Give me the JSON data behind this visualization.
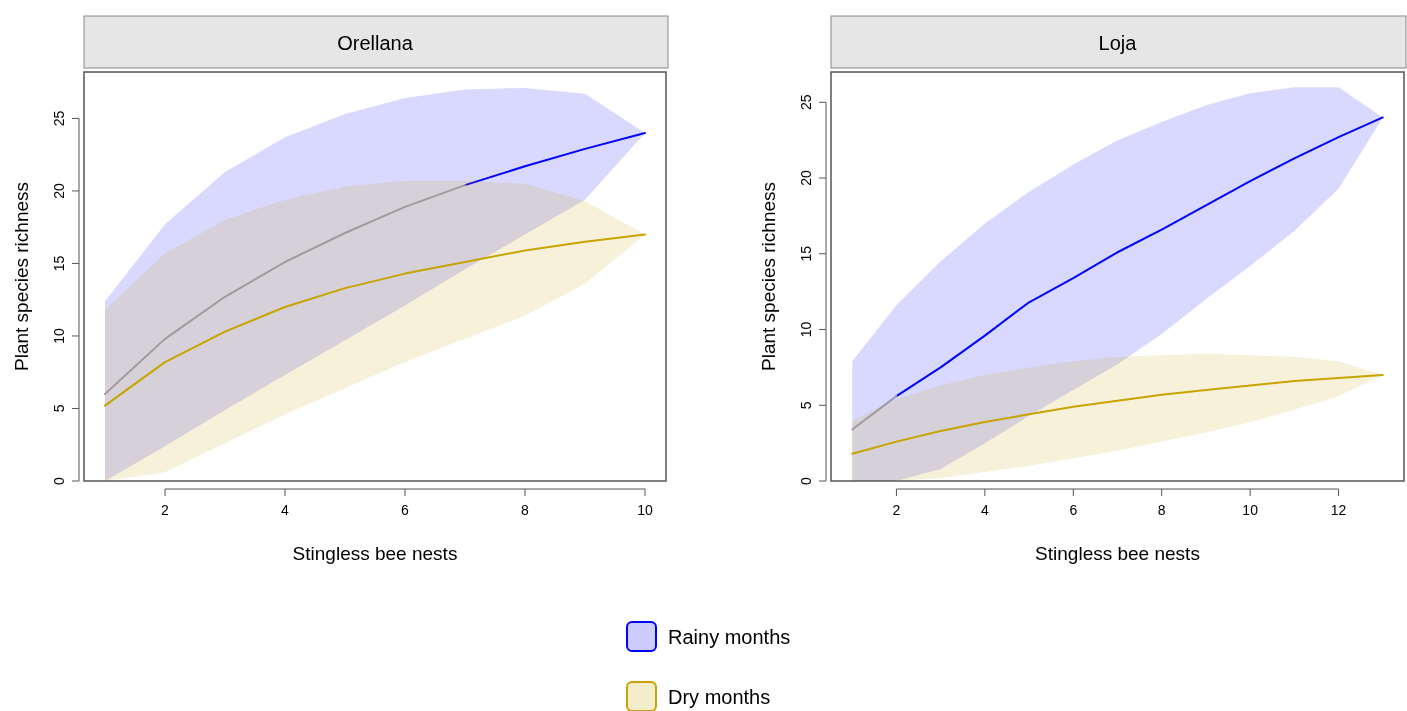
{
  "chart_data": [
    {
      "type": "line",
      "title": "Orellana",
      "xlabel": "Stingless bee nests",
      "ylabel": "Plant species richness",
      "x": [
        1,
        2,
        3,
        4,
        5,
        6,
        7,
        8,
        9,
        10
      ],
      "xlim": [
        0.65,
        10.35
      ],
      "xticks": [
        2,
        4,
        6,
        8,
        10
      ],
      "ylim": [
        0,
        28.2
      ],
      "yticks": [
        0,
        5,
        10,
        15,
        20,
        25
      ],
      "legend": "bottom",
      "series": [
        {
          "name": "Rainy months",
          "color": "#0000ff",
          "values": [
            null,
            null,
            null,
            null,
            null,
            null,
            20.4,
            21.7,
            22.9,
            24.0
          ],
          "lower": [
            0,
            2.4,
            4.9,
            7.3,
            9.7,
            12.1,
            14.6,
            17.0,
            19.4,
            24.0
          ],
          "upper": [
            12.4,
            17.7,
            21.3,
            23.7,
            25.3,
            26.4,
            27.0,
            27.1,
            26.7,
            24.0
          ]
        },
        {
          "color": "#9a9ab8",
          "values": [
            6.0,
            9.8,
            12.7,
            15.1,
            17.1,
            18.9,
            20.4,
            null,
            null,
            null
          ]
        },
        {
          "name": "Dry months",
          "color": "#c8a400",
          "values": [
            5.2,
            8.2,
            10.3,
            12.0,
            13.3,
            14.3,
            15.1,
            15.9,
            16.5,
            17.0
          ],
          "lower": [
            0,
            0.6,
            2.6,
            4.6,
            6.4,
            8.2,
            9.8,
            11.4,
            13.6,
            17.0
          ],
          "upper": [
            11.8,
            15.7,
            18.0,
            19.4,
            20.3,
            20.7,
            20.7,
            20.5,
            19.3,
            17.0
          ]
        }
      ]
    },
    {
      "type": "line",
      "title": "Loja",
      "xlabel": "Stingless bee nests",
      "ylabel": "Plant species richness",
      "x": [
        1,
        2,
        3,
        4,
        5,
        6,
        7,
        8,
        9,
        10,
        11,
        12,
        13
      ],
      "xlim": [
        0.52,
        13.48
      ],
      "xticks": [
        2,
        4,
        6,
        8,
        10,
        12
      ],
      "ylim": [
        0,
        27
      ],
      "yticks": [
        0,
        5,
        10,
        15,
        20,
        25
      ],
      "series": [
        {
          "color": "#0000ff",
          "values": [
            null,
            5.6,
            7.5,
            9.6,
            11.8,
            13.4,
            15.1,
            16.6,
            18.2,
            19.8,
            21.3,
            22.7,
            24.0
          ],
          "lower": [
            0,
            0,
            0.8,
            2.5,
            4.3,
            6.0,
            7.7,
            9.7,
            12.0,
            14.2,
            16.5,
            19.3,
            24.0
          ],
          "upper": [
            7.9,
            11.6,
            14.5,
            17.0,
            19.1,
            20.9,
            22.5,
            23.7,
            24.8,
            25.6,
            26.0,
            26.0,
            24.0
          ]
        },
        {
          "color": "#9a9ab8",
          "values": [
            3.4,
            5.6,
            null,
            null,
            null,
            null,
            null,
            null,
            null,
            null,
            null,
            null,
            null
          ]
        },
        {
          "color": "#c8a400",
          "values": [
            1.8,
            2.6,
            3.3,
            3.9,
            4.4,
            4.9,
            5.3,
            5.7,
            6.0,
            6.3,
            6.6,
            6.8,
            7.0
          ],
          "lower": [
            0,
            0,
            0.2,
            0.6,
            1.0,
            1.5,
            2.0,
            2.6,
            3.2,
            3.9,
            4.7,
            5.6,
            7.0
          ],
          "upper": [
            4.0,
            5.4,
            6.3,
            7.0,
            7.5,
            7.9,
            8.2,
            8.3,
            8.4,
            8.3,
            8.2,
            7.9,
            7.0
          ]
        }
      ]
    }
  ]
}
